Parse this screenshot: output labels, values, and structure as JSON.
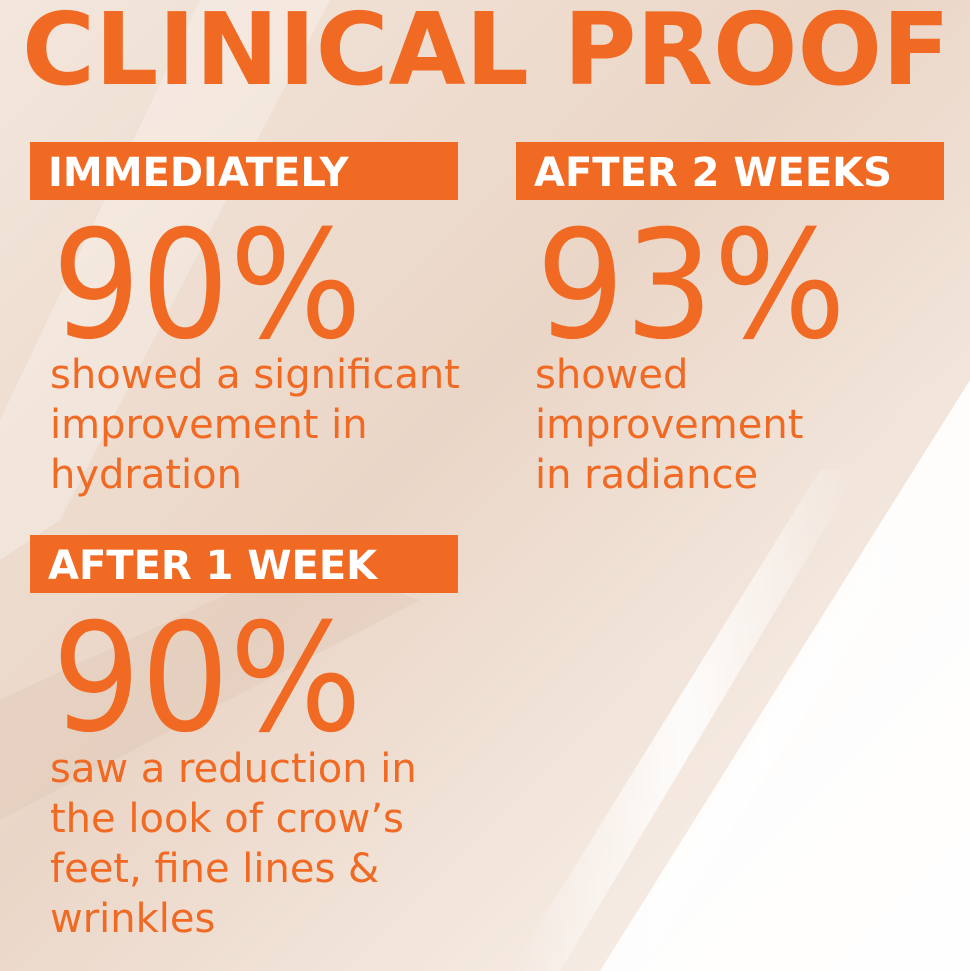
{
  "title": "CLINICAL PROOF",
  "blocks": [
    {
      "label": "IMMEDIATELY",
      "stat": "90%",
      "description": [
        "showed a significant",
        "improvement in",
        "hydration"
      ]
    },
    {
      "label": "AFTER 2 WEEKS",
      "stat": "93%",
      "description": [
        "showed",
        "improvement",
        "in radiance"
      ]
    },
    {
      "label": "AFTER 1 WEEK",
      "stat": "90%",
      "description": [
        "saw a reduction in",
        "the look of crow’s",
        "feet, fine lines &",
        "wrinkles"
      ]
    }
  ]
}
